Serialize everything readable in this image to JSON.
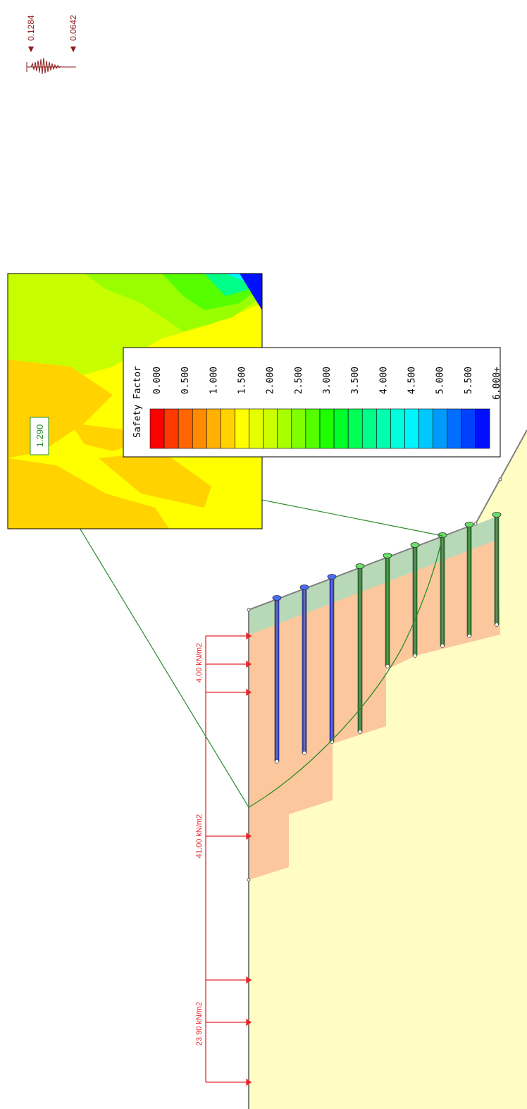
{
  "seismic": {
    "horizontal_coef": "0.1284",
    "vertical_coef": "0.0642",
    "color": "#8b1a1a"
  },
  "inset": {
    "safety_factor_value": "1.290",
    "label_color": "#2e8b2e"
  },
  "legend": {
    "title": "Safety Factor",
    "ticks": [
      "0.000",
      "0.500",
      "1.000",
      "1.500",
      "2.000",
      "2.500",
      "3.000",
      "3.500",
      "4.000",
      "4.500",
      "5.000",
      "5.500",
      "6.000+"
    ],
    "colors": [
      "#ff0000",
      "#ff3a00",
      "#ff6600",
      "#ff8c00",
      "#ffb000",
      "#ffd200",
      "#ffff00",
      "#e6ff00",
      "#ccff00",
      "#a8ff00",
      "#7fff00",
      "#55ff00",
      "#1eff00",
      "#00ff2a",
      "#00ff55",
      "#00ff88",
      "#00ffb0",
      "#00ffdd",
      "#00f5ff",
      "#00c8ff",
      "#009bff",
      "#006eff",
      "#0040ff",
      "#0010ff"
    ]
  },
  "loads": [
    {
      "label": "4.00 kN/m2"
    },
    {
      "label": "41.00 kN/m2"
    },
    {
      "label": "23.90 kN/m2"
    }
  ],
  "load_color": "#e8262a",
  "slope": {
    "soil_color": "#fffcc4",
    "excavation_color": "#fcc79c",
    "shotcrete_color": "#b8d9b8"
  },
  "nails": {
    "blue_color": "#3a3ad8",
    "green_color": "#2e7d2e",
    "head_blue": "#4a6cff",
    "head_green": "#6adf6a"
  }
}
